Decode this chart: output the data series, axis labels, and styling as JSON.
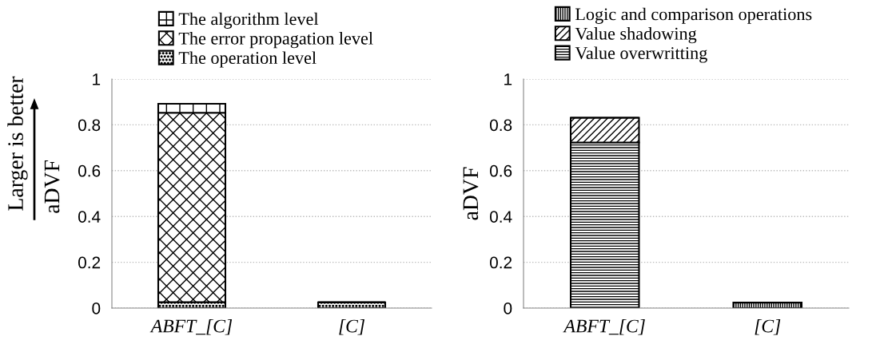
{
  "chart_data": [
    {
      "type": "bar",
      "stacked": true,
      "categories": [
        "ABFT_[C]",
        "[C]"
      ],
      "ylabel": "aDVF",
      "annotations": [
        "Larger is better"
      ],
      "ylim": [
        0,
        1
      ],
      "yticks": [
        0,
        {
          "value": 0.2,
          "label": "0.2"
        },
        {
          "value": 0.4,
          "label": "0.4"
        },
        {
          "value": 0.6,
          "label": "0.6"
        },
        {
          "value": 0.8,
          "label": "0.8"
        },
        1
      ],
      "grid": "y",
      "legend": "top",
      "series": [
        {
          "name": "The operation level",
          "color": "#000000",
          "values": [
            0.026,
            0.025
          ]
        },
        {
          "name": "The error propagation level",
          "color": "#000000",
          "values": [
            0.827,
            0
          ]
        },
        {
          "name": "The algorithm level",
          "color": "#000000",
          "values": [
            0.039,
            0
          ]
        }
      ]
    },
    {
      "type": "bar",
      "stacked": true,
      "categories": [
        "ABFT_[C]",
        "[C]"
      ],
      "ylabel": "aDVF",
      "ylim": [
        0,
        1
      ],
      "yticks": [
        0,
        {
          "value": 0.2,
          "label": "0.2"
        },
        {
          "value": 0.4,
          "label": "0.4"
        },
        {
          "value": 0.6,
          "label": "0.6"
        },
        {
          "value": 0.8,
          "label": "0.8"
        },
        1
      ],
      "grid": "y",
      "legend": "top",
      "series": [
        {
          "name": "Value overwritting",
          "color": "#000000",
          "values": [
            0.723,
            0
          ]
        },
        {
          "name": "Value shadowing",
          "color": "#000000",
          "values": [
            0.108,
            0
          ]
        },
        {
          "name": "Logic and comparison operations",
          "color": "#000000",
          "values": [
            0,
            0.024
          ]
        }
      ]
    }
  ]
}
